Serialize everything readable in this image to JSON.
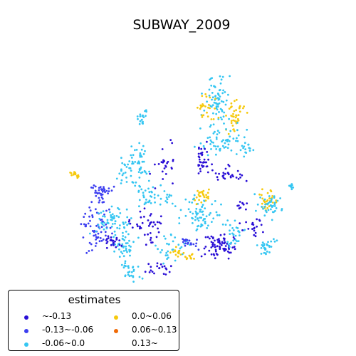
{
  "title": "SUBWAY_2009",
  "legend": {
    "title": "estimates",
    "items": [
      {
        "label": "~-0.13",
        "color": "#2a0fd6"
      },
      {
        "label": "-0.13~-0.06",
        "color": "#3c3ef0"
      },
      {
        "label": "-0.06~0.0",
        "color": "#35c6f2"
      },
      {
        "label": "0.0~0.06",
        "color": "#f6c90d"
      },
      {
        "label": "0.06~0.13",
        "color": "#f06a06"
      },
      {
        "label": "0.13~",
        "color": "#ffffff"
      }
    ]
  },
  "chart_data": {
    "type": "scatter",
    "title": "SUBWAY_2009",
    "legend_title": "estimates",
    "legend_placement": "bottom-left",
    "axes": "off",
    "series": [
      {
        "name": "~-0.13",
        "color": "#2a0fd6"
      },
      {
        "name": "-0.13~-0.06",
        "color": "#3c3ef0"
      },
      {
        "name": "-0.06~0.0",
        "color": "#35c6f2"
      },
      {
        "name": "0.0~0.06",
        "color": "#f6c90d"
      },
      {
        "name": "0.06~0.13",
        "color": "#f06a06"
      },
      {
        "name": "0.13~",
        "color": "#ffffff"
      }
    ]
  }
}
